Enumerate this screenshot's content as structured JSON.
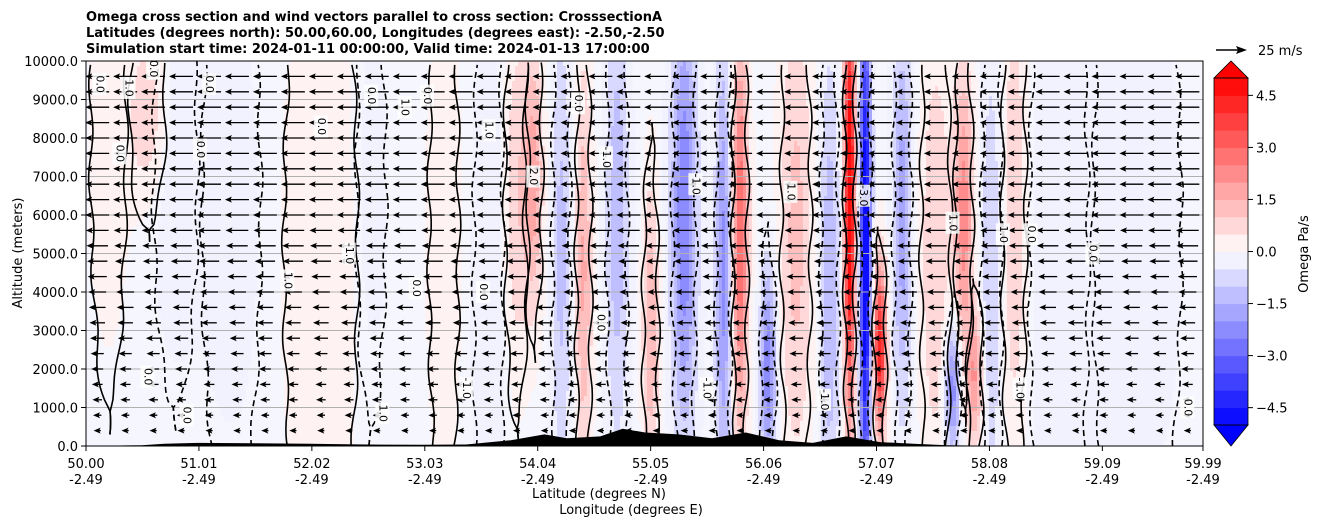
{
  "chart_data": {
    "type": "contour",
    "title_lines": [
      "Omega cross section and wind vectors parallel to cross section: CrosssectionA",
      "Latitudes (degrees north): 50.00,60.00, Longitudes (degrees east): -2.50,-2.50",
      "Simulation start time: 2024-01-11 00:00:00, Valid time: 2024-01-13 17:00:00"
    ],
    "ylabel": "Altitude (meters)",
    "xlabel_lat": "Latitude (degrees N)",
    "xlabel_lon": "Longitude (degrees E)",
    "ylim": [
      0,
      10000
    ],
    "xlim": [
      50.0,
      59.99
    ],
    "yticks": [
      {
        "value": 0,
        "label": "0.0"
      },
      {
        "value": 1000,
        "label": "1000.0"
      },
      {
        "value": 2000,
        "label": "2000.0"
      },
      {
        "value": 3000,
        "label": "3000.0"
      },
      {
        "value": 4000,
        "label": "4000.0"
      },
      {
        "value": 5000,
        "label": "5000.0"
      },
      {
        "value": 6000,
        "label": "6000.0"
      },
      {
        "value": 7000,
        "label": "7000.0"
      },
      {
        "value": 8000,
        "label": "8000.0"
      },
      {
        "value": 9000,
        "label": "9000.0"
      },
      {
        "value": 10000,
        "label": "10000.0"
      }
    ],
    "xticks": [
      {
        "value": 50.0,
        "lat": "50.00",
        "lon": "-2.49"
      },
      {
        "value": 51.01,
        "lat": "51.01",
        "lon": "-2.49"
      },
      {
        "value": 52.02,
        "lat": "52.02",
        "lon": "-2.49"
      },
      {
        "value": 53.03,
        "lat": "53.03",
        "lon": "-2.49"
      },
      {
        "value": 54.04,
        "lat": "54.04",
        "lon": "-2.49"
      },
      {
        "value": 55.05,
        "lat": "55.05",
        "lon": "-2.49"
      },
      {
        "value": 56.06,
        "lat": "56.06",
        "lon": "-2.49"
      },
      {
        "value": 57.07,
        "lat": "57.07",
        "lon": "-2.49"
      },
      {
        "value": 58.08,
        "lat": "58.08",
        "lon": "-2.49"
      },
      {
        "value": 59.09,
        "lat": "59.09",
        "lon": "-2.49"
      },
      {
        "value": 59.99,
        "lat": "59.99",
        "lon": "-2.49"
      }
    ],
    "colorbar": {
      "label": "Omega Pa/s",
      "range": [
        -5,
        5
      ],
      "ticks": [
        {
          "value": 4.5,
          "label": "4.5"
        },
        {
          "value": 3.0,
          "label": "3.0"
        },
        {
          "value": 1.5,
          "label": "1.5"
        },
        {
          "value": 0.0,
          "label": "0.0"
        },
        {
          "value": -1.5,
          "label": "−1.5"
        },
        {
          "value": -3.0,
          "label": "−3.0"
        },
        {
          "value": -4.5,
          "label": "−4.5"
        }
      ]
    },
    "vector_key": {
      "label": "25 m/s",
      "speed": 25
    },
    "omega_features": [
      {
        "lat": 50.2,
        "alt": 8000,
        "value": 0.4,
        "sx": 0.12,
        "sy": 3500
      },
      {
        "lat": 50.55,
        "alt": 8600,
        "value": 0.9,
        "sx": 0.12,
        "sy": 1500
      },
      {
        "lat": 50.8,
        "alt": 7000,
        "value": -0.4,
        "sx": 0.15,
        "sy": 3000
      },
      {
        "lat": 51.3,
        "alt": 6000,
        "value": -0.3,
        "sx": 0.2,
        "sy": 4000
      },
      {
        "lat": 52.1,
        "alt": 5000,
        "value": 0.4,
        "sx": 0.25,
        "sy": 5000
      },
      {
        "lat": 52.55,
        "alt": 6500,
        "value": -0.4,
        "sx": 0.1,
        "sy": 3000
      },
      {
        "lat": 53.2,
        "alt": 5500,
        "value": 0.5,
        "sx": 0.1,
        "sy": 4000
      },
      {
        "lat": 53.6,
        "alt": 4000,
        "value": -0.5,
        "sx": 0.1,
        "sy": 5000
      },
      {
        "lat": 53.85,
        "alt": 6500,
        "value": 0.9,
        "sx": 0.08,
        "sy": 3000
      },
      {
        "lat": 54.0,
        "alt": 7000,
        "value": 1.8,
        "sx": 0.06,
        "sy": 2200
      },
      {
        "lat": 54.25,
        "alt": 5000,
        "value": -1.2,
        "sx": 0.06,
        "sy": 4000
      },
      {
        "lat": 54.45,
        "alt": 4500,
        "value": 1.6,
        "sx": 0.05,
        "sy": 3500
      },
      {
        "lat": 54.75,
        "alt": 6000,
        "value": -1.4,
        "sx": 0.07,
        "sy": 4000
      },
      {
        "lat": 55.05,
        "alt": 3000,
        "value": 1.5,
        "sx": 0.05,
        "sy": 2500
      },
      {
        "lat": 55.35,
        "alt": 6000,
        "value": -2.5,
        "sx": 0.08,
        "sy": 4000
      },
      {
        "lat": 55.7,
        "alt": 4500,
        "value": -2.2,
        "sx": 0.05,
        "sy": 4000
      },
      {
        "lat": 55.85,
        "alt": 5500,
        "value": 3.0,
        "sx": 0.05,
        "sy": 3500
      },
      {
        "lat": 56.1,
        "alt": 2000,
        "value": -2.5,
        "sx": 0.05,
        "sy": 1800
      },
      {
        "lat": 56.35,
        "alt": 5500,
        "value": 1.2,
        "sx": 0.1,
        "sy": 4000
      },
      {
        "lat": 56.65,
        "alt": 4000,
        "value": -1.5,
        "sx": 0.06,
        "sy": 4000
      },
      {
        "lat": 56.83,
        "alt": 6500,
        "value": 5.5,
        "sx": 0.035,
        "sy": 4000
      },
      {
        "lat": 56.97,
        "alt": 5000,
        "value": -5.5,
        "sx": 0.035,
        "sy": 5000
      },
      {
        "lat": 57.1,
        "alt": 2500,
        "value": 4.5,
        "sx": 0.04,
        "sy": 1500
      },
      {
        "lat": 57.3,
        "alt": 6000,
        "value": -1.8,
        "sx": 0.06,
        "sy": 3500
      },
      {
        "lat": 57.6,
        "alt": 5000,
        "value": 0.9,
        "sx": 0.1,
        "sy": 4000
      },
      {
        "lat": 57.85,
        "alt": 6000,
        "value": 2.3,
        "sx": 0.06,
        "sy": 2500
      },
      {
        "lat": 58.1,
        "alt": 4500,
        "value": -1.0,
        "sx": 0.07,
        "sy": 4000
      },
      {
        "lat": 58.3,
        "alt": 6000,
        "value": 1.0,
        "sx": 0.08,
        "sy": 4000
      },
      {
        "lat": 58.7,
        "alt": 5000,
        "value": -0.4,
        "sx": 0.2,
        "sy": 5000
      },
      {
        "lat": 59.4,
        "alt": 5500,
        "value": -0.3,
        "sx": 0.3,
        "sy": 5000
      },
      {
        "lat": 57.75,
        "alt": 1500,
        "value": -2.5,
        "sx": 0.05,
        "sy": 1200
      },
      {
        "lat": 57.95,
        "alt": 1800,
        "value": 2.0,
        "sx": 0.05,
        "sy": 1200
      }
    ],
    "contour_labels": [
      {
        "lat": 50.12,
        "alt": 9400,
        "text": "0.0"
      },
      {
        "lat": 50.3,
        "alt": 7600,
        "text": "0.0"
      },
      {
        "lat": 50.38,
        "alt": 9300,
        "text": "1.0"
      },
      {
        "lat": 50.6,
        "alt": 9800,
        "text": "0.0"
      },
      {
        "lat": 51.02,
        "alt": 7700,
        "text": "0.0"
      },
      {
        "lat": 51.1,
        "alt": 9400,
        "text": "0.0"
      },
      {
        "lat": 52.1,
        "alt": 8300,
        "text": "0.0"
      },
      {
        "lat": 52.55,
        "alt": 9100,
        "text": "0.0"
      },
      {
        "lat": 52.85,
        "alt": 8800,
        "text": "1.0"
      },
      {
        "lat": 53.05,
        "alt": 9100,
        "text": "0.0"
      },
      {
        "lat": 53.6,
        "alt": 8200,
        "text": "1.0"
      },
      {
        "lat": 54.0,
        "alt": 7000,
        "text": "2.0"
      },
      {
        "lat": 54.4,
        "alt": 8900,
        "text": "0.0"
      },
      {
        "lat": 54.65,
        "alt": 7500,
        "text": "-1.0"
      },
      {
        "lat": 55.45,
        "alt": 6800,
        "text": "-1.0"
      },
      {
        "lat": 56.3,
        "alt": 6600,
        "text": "1.0"
      },
      {
        "lat": 56.95,
        "alt": 6500,
        "text": "-3.0"
      },
      {
        "lat": 57.75,
        "alt": 5800,
        "text": "1.0"
      },
      {
        "lat": 58.2,
        "alt": 5500,
        "text": "1.0"
      },
      {
        "lat": 58.45,
        "alt": 5500,
        "text": "0.0"
      },
      {
        "lat": 59.0,
        "alt": 5000,
        "text": "0.0"
      },
      {
        "lat": 52.95,
        "alt": 4100,
        "text": "0.0"
      },
      {
        "lat": 53.55,
        "alt": 4000,
        "text": "0.0"
      },
      {
        "lat": 52.35,
        "alt": 5000,
        "text": "-1.0"
      },
      {
        "lat": 51.8,
        "alt": 4300,
        "text": "1.0"
      },
      {
        "lat": 50.55,
        "alt": 1800,
        "text": "0.0"
      },
      {
        "lat": 50.9,
        "alt": 800,
        "text": "0.0"
      },
      {
        "lat": 52.65,
        "alt": 850,
        "text": "1.0"
      },
      {
        "lat": 53.4,
        "alt": 1500,
        "text": "-1.0"
      },
      {
        "lat": 54.6,
        "alt": 3200,
        "text": "0.0"
      },
      {
        "lat": 55.55,
        "alt": 1500,
        "text": "-1.0"
      },
      {
        "lat": 56.6,
        "alt": 1200,
        "text": "-1.0"
      },
      {
        "lat": 58.35,
        "alt": 1500,
        "text": "-1.0"
      },
      {
        "lat": 59.85,
        "alt": 1000,
        "text": "0.0"
      }
    ]
  }
}
